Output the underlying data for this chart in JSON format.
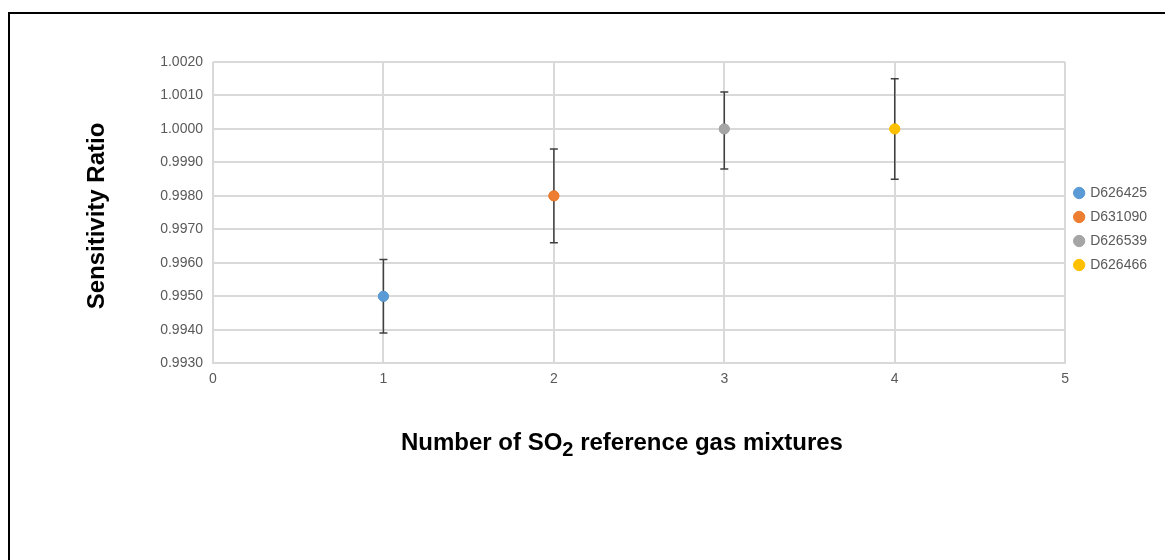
{
  "chart_data": {
    "type": "scatter",
    "xlabel": "Number of SO$_{2}$ reference gas mixtures",
    "ylabel": "Sensitivity Ratio",
    "xlim": [
      0,
      5
    ],
    "xticks": [
      0,
      1,
      2,
      3,
      4,
      5
    ],
    "ylim": [
      0.993,
      1.002
    ],
    "yticks": [
      {
        "value": 0.993,
        "label": "0.9930"
      },
      {
        "value": 0.994,
        "label": "0.9940"
      },
      {
        "value": 0.995,
        "label": "0.9950"
      },
      {
        "value": 0.996,
        "label": "0.9960"
      },
      {
        "value": 0.997,
        "label": "0.9970"
      },
      {
        "value": 0.998,
        "label": "0.9980"
      },
      {
        "value": 0.999,
        "label": "0.9990"
      },
      {
        "value": 1.0,
        "label": "1.0000"
      },
      {
        "value": 1.001,
        "label": "1.0010"
      },
      {
        "value": 1.002,
        "label": "1.0020"
      }
    ],
    "grid": true,
    "legend": "right",
    "marker": "circle",
    "series": [
      {
        "name": "D626425",
        "color": "#5b9bd5",
        "x": [
          1
        ],
        "values": [
          0.995
        ],
        "errors": [
          [
            0.9939,
            0.9961
          ]
        ]
      },
      {
        "name": "D631090",
        "color": "#ed7d31",
        "x": [
          2
        ],
        "values": [
          0.998
        ],
        "errors": [
          [
            0.9966,
            0.9994
          ]
        ]
      },
      {
        "name": "D626539",
        "color": "#a5a5a5",
        "x": [
          3
        ],
        "values": [
          1.0
        ],
        "errors": [
          [
            0.9988,
            1.0011
          ]
        ]
      },
      {
        "name": "D626466",
        "color": "#ffc000",
        "x": [
          4
        ],
        "values": [
          1.0
        ],
        "errors": [
          [
            0.9985,
            1.0015
          ]
        ]
      }
    ]
  }
}
